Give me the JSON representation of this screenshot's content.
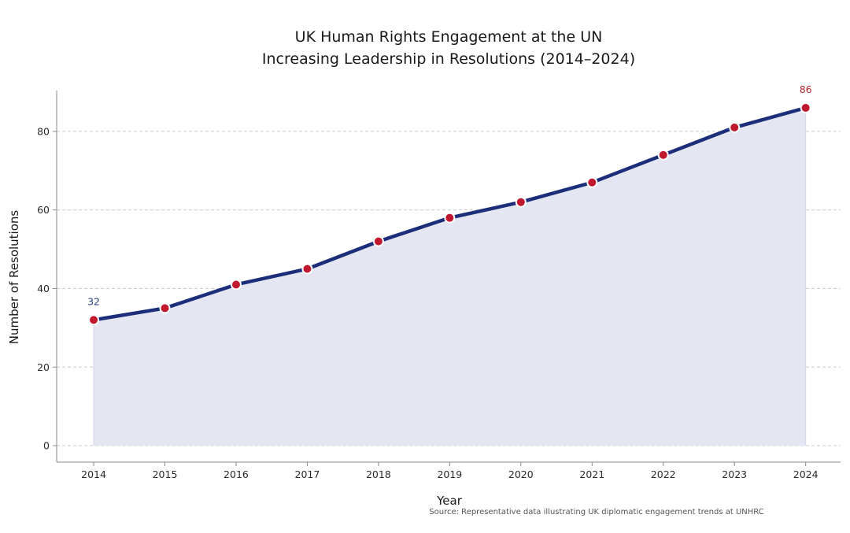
{
  "chart_data": {
    "type": "area",
    "title": "UK Human Rights Engagement at the UN",
    "subtitle": "Increasing Leadership in Resolutions (2014–2024)",
    "xlabel": "Year",
    "ylabel": "Number of Resolutions",
    "x": [
      2014,
      2015,
      2016,
      2017,
      2018,
      2019,
      2020,
      2021,
      2022,
      2023,
      2024
    ],
    "series": [
      {
        "name": "Resolutions",
        "values": [
          32,
          35,
          41,
          45,
          52,
          58,
          62,
          67,
          74,
          81,
          86
        ]
      }
    ],
    "xticks": [
      "2014",
      "2015",
      "2016",
      "2017",
      "2018",
      "2019",
      "2020",
      "2021",
      "2022",
      "2023",
      "2024"
    ],
    "yticks": [
      "0",
      "20",
      "40",
      "60",
      "80"
    ],
    "ytick_values": [
      0,
      20,
      40,
      60,
      80
    ],
    "xlim": [
      2013.48,
      2024.49
    ],
    "ylim": [
      -4.2,
      90.4
    ],
    "grid": "horizontal dashed",
    "legend": "none",
    "annotations": [
      {
        "x": 2014,
        "y": 32,
        "text": "32",
        "color": "#2b3f7a"
      },
      {
        "x": 2024,
        "y": 86,
        "text": "86",
        "color": "#b3282d"
      }
    ],
    "source_note": "Source: Representative data illustrating UK diplomatic engagement trends at UNHRC",
    "colors": {
      "line": "#1c2e7a",
      "marker_fill": "#c0182f",
      "marker_edge": "#ffffff",
      "area_fill": "#e4e7f2",
      "grid": "#cccccc",
      "spine": "#888888"
    }
  }
}
